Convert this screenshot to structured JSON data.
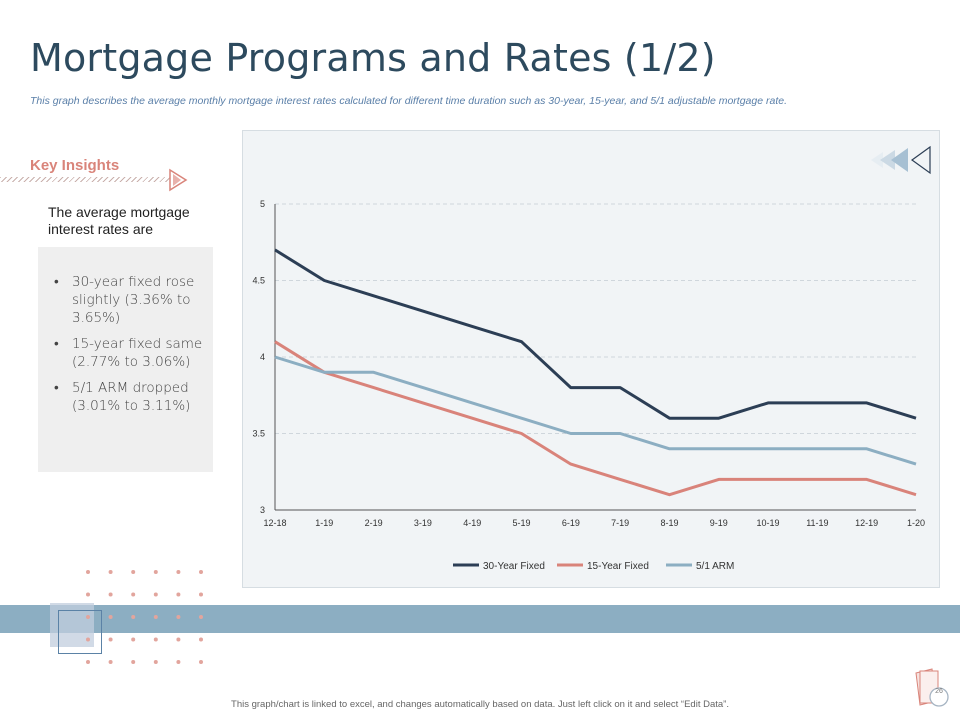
{
  "slide": {
    "title": "Mortgage Programs and Rates (1/2)",
    "subtitle": "This graph describes the average monthly mortgage interest rates calculated for different time duration such as 30-year, 15-year, and 5/1 adjustable mortgage rate.",
    "footer": "This graph/chart is linked to excel, and changes automatically based on data. Just left click on it and select “Edit Data”.",
    "page_number": "26"
  },
  "insights": {
    "heading": "Key Insights",
    "intro": "The average mortgage interest rates are",
    "items": [
      "30-year fixed rose slightly (3.36% to 3.65%)",
      "15-year fixed same (2.77% to 3.06%)",
      "5/1 ARM dropped (3.01% to 3.11%)"
    ]
  },
  "colors": {
    "title": "#2d4a5e",
    "accent": "#d9847a",
    "band": "#8caec2",
    "series_30y": "#2c3e55",
    "series_15y": "#d9837a",
    "series_arm": "#8caec2"
  },
  "chart_data": {
    "type": "line",
    "title": "",
    "xlabel": "",
    "ylabel": "",
    "categories": [
      "12-18",
      "1-19",
      "2-19",
      "3-19",
      "4-19",
      "5-19",
      "6-19",
      "7-19",
      "8-19",
      "9-19",
      "10-19",
      "11-19",
      "12-19",
      "1-20"
    ],
    "ylim": [
      3,
      5
    ],
    "yticks": [
      "3",
      "3.5",
      "4",
      "4.5",
      "5"
    ],
    "grid": true,
    "legend_position": "bottom",
    "series": [
      {
        "name": "30-Year Fixed",
        "color": "#2c3e55",
        "values": [
          4.7,
          4.5,
          4.4,
          4.3,
          4.2,
          4.1,
          3.8,
          3.8,
          3.6,
          3.6,
          3.7,
          3.7,
          3.7,
          3.6
        ]
      },
      {
        "name": "15-Year Fixed",
        "color": "#d9837a",
        "values": [
          4.1,
          3.9,
          3.8,
          3.7,
          3.6,
          3.5,
          3.3,
          3.2,
          3.1,
          3.2,
          3.2,
          3.2,
          3.2,
          3.1
        ]
      },
      {
        "name": "5/1 ARM",
        "color": "#8caec2",
        "values": [
          4.0,
          3.9,
          3.9,
          3.8,
          3.7,
          3.6,
          3.5,
          3.5,
          3.4,
          3.4,
          3.4,
          3.4,
          3.4,
          3.3
        ]
      }
    ]
  }
}
